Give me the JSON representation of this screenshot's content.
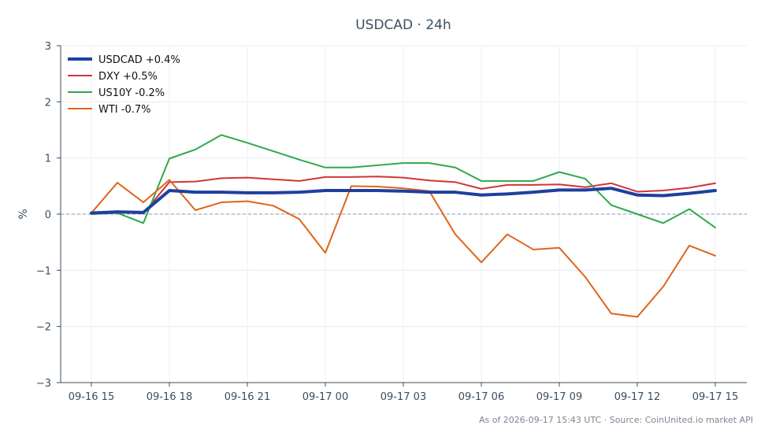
{
  "chart_data": {
    "type": "line",
    "title": "USDCAD · 24h",
    "xlabel": "",
    "ylabel": "%",
    "ylim": [
      -3,
      3
    ],
    "yticks": [
      -3,
      -2,
      -1,
      0,
      1,
      2,
      3
    ],
    "ytick_labels": [
      "−3",
      "−2",
      "−1",
      "0",
      "1",
      "2",
      "3"
    ],
    "x": [
      "09-16 15",
      "09-16 16",
      "09-16 17",
      "09-16 18",
      "09-16 19",
      "09-16 20",
      "09-16 21",
      "09-16 22",
      "09-16 23",
      "09-17 00",
      "09-17 01",
      "09-17 02",
      "09-17 03",
      "09-17 04",
      "09-17 05",
      "09-17 06",
      "09-17 07",
      "09-17 08",
      "09-17 09",
      "09-17 10",
      "09-17 11",
      "09-17 12",
      "09-17 13",
      "09-17 14",
      "09-17 15"
    ],
    "xticks": [
      "09-16 15",
      "09-16 18",
      "09-16 21",
      "09-17 00",
      "09-17 03",
      "09-17 06",
      "09-17 09",
      "09-17 12",
      "09-17 15"
    ],
    "grid": true,
    "zero_line": true,
    "legend_position": "top-left",
    "series": [
      {
        "name": "USDCAD +0.4%",
        "color": "#1f3f9f",
        "width": 4,
        "values": [
          0.02,
          0.04,
          0.03,
          0.42,
          0.39,
          0.39,
          0.38,
          0.38,
          0.39,
          0.42,
          0.42,
          0.42,
          0.41,
          0.39,
          0.39,
          0.34,
          0.36,
          0.39,
          0.43,
          0.43,
          0.46,
          0.34,
          0.33,
          0.37,
          0.42
        ]
      },
      {
        "name": "DXY +0.5%",
        "color": "#d13438",
        "width": 2,
        "values": [
          0.02,
          0.05,
          0.01,
          0.57,
          0.58,
          0.64,
          0.65,
          0.62,
          0.59,
          0.66,
          0.66,
          0.67,
          0.65,
          0.6,
          0.57,
          0.45,
          0.52,
          0.52,
          0.53,
          0.48,
          0.55,
          0.4,
          0.42,
          0.47,
          0.55
        ]
      },
      {
        "name": "US10Y -0.2%",
        "color": "#2ea84a",
        "width": 2,
        "values": [
          0.0,
          0.02,
          -0.16,
          0.99,
          1.15,
          1.41,
          1.27,
          1.12,
          0.97,
          0.83,
          0.83,
          0.87,
          0.91,
          0.91,
          0.83,
          0.59,
          0.59,
          0.59,
          0.75,
          0.63,
          0.16,
          0.0,
          -0.16,
          0.09,
          -0.24
        ]
      },
      {
        "name": "WTI -0.7%",
        "color": "#e0641b",
        "width": 2,
        "values": [
          0.02,
          0.56,
          0.21,
          0.61,
          0.07,
          0.21,
          0.23,
          0.15,
          -0.09,
          -0.69,
          0.5,
          0.49,
          0.46,
          0.41,
          -0.36,
          -0.86,
          -0.36,
          -0.63,
          -0.6,
          -1.12,
          -1.77,
          -1.83,
          -1.29,
          -0.56,
          -0.74
        ]
      }
    ]
  },
  "footer": "As of 2026-09-17 15:43 UTC · Source: CoinUnited.io market API"
}
